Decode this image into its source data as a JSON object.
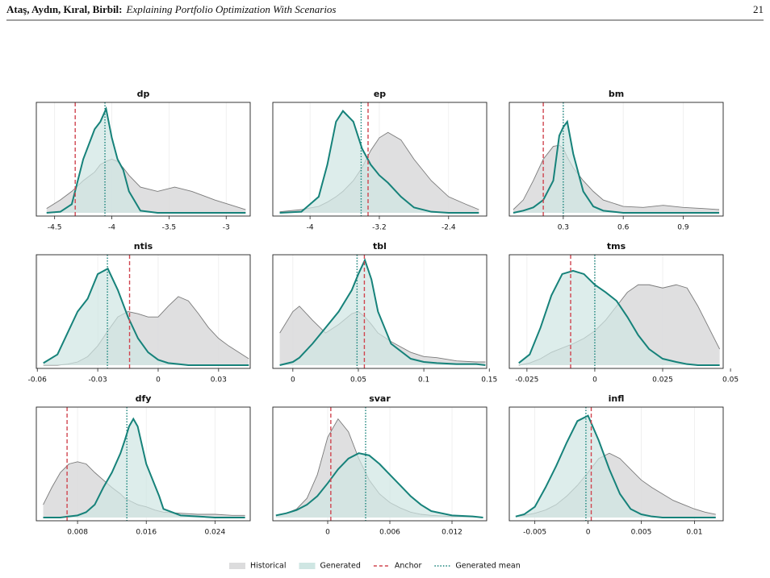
{
  "header": {
    "authors": "Ataş, Aydın, Kıral, Birbil:",
    "title": "Explaining Portfolio Optimization With Scenarios",
    "page": "21"
  },
  "legend": {
    "items": [
      {
        "label": "Historical",
        "color": "#dcdcdd",
        "edge_color": "#7a7a7a"
      },
      {
        "label": "Generated",
        "color": "#cfe6e3",
        "edge_color": "#16827a"
      },
      {
        "label": "Anchor",
        "color": "#d0454f"
      },
      {
        "label": "Generated mean",
        "color": "#16827a"
      }
    ]
  },
  "chart_data": [
    {
      "type": "density",
      "title": "dp",
      "xlim": [
        -4.66,
        -2.79
      ],
      "ylim": [
        0,
        1
      ],
      "xticks": [
        -4.5,
        -4,
        -3.5,
        -3
      ],
      "grid": true,
      "x": [
        -4.57,
        -4.45,
        -4.35,
        -4.25,
        -4.15,
        -4.1,
        -4.05,
        -4.0,
        -3.95,
        -3.9,
        -3.85,
        -3.75,
        -3.6,
        -3.45,
        -3.3,
        -3.1,
        -2.95,
        -2.83
      ],
      "historical": [
        0.04,
        0.12,
        0.2,
        0.3,
        0.38,
        0.45,
        0.48,
        0.5,
        0.48,
        0.42,
        0.35,
        0.24,
        0.2,
        0.24,
        0.2,
        0.12,
        0.07,
        0.03
      ],
      "generated": [
        0,
        0.01,
        0.08,
        0.5,
        0.78,
        0.85,
        0.97,
        0.7,
        0.5,
        0.4,
        0.2,
        0.02,
        0,
        0,
        0,
        0,
        0,
        0
      ],
      "anchor": -4.32,
      "generated_mean": -4.06
    },
    {
      "type": "density",
      "title": "ep",
      "xlim": [
        -4.43,
        -1.96
      ],
      "ylim": [
        0,
        1
      ],
      "xticks": [
        -4,
        -3.2,
        -2.4
      ],
      "grid": true,
      "x": [
        -4.35,
        -4.1,
        -3.9,
        -3.8,
        -3.7,
        -3.62,
        -3.5,
        -3.4,
        -3.3,
        -3.2,
        -3.1,
        -2.95,
        -2.8,
        -2.6,
        -2.4,
        -2.2,
        -2.05
      ],
      "historical": [
        0.01,
        0.03,
        0.06,
        0.1,
        0.15,
        0.2,
        0.3,
        0.42,
        0.58,
        0.7,
        0.75,
        0.68,
        0.5,
        0.3,
        0.15,
        0.08,
        0.03
      ],
      "generated": [
        0,
        0.01,
        0.15,
        0.45,
        0.85,
        0.95,
        0.85,
        0.6,
        0.45,
        0.35,
        0.28,
        0.15,
        0.05,
        0.01,
        0,
        0,
        0
      ],
      "anchor": -3.33,
      "generated_mean": -3.41
    },
    {
      "type": "density",
      "title": "bm",
      "xlim": [
        0.03,
        1.1
      ],
      "ylim": [
        0,
        1
      ],
      "xticks": [
        0.3,
        0.6,
        0.9
      ],
      "grid": true,
      "x": [
        0.05,
        0.1,
        0.15,
        0.2,
        0.25,
        0.28,
        0.3,
        0.32,
        0.35,
        0.4,
        0.45,
        0.5,
        0.6,
        0.7,
        0.8,
        0.9,
        1.0,
        1.08
      ],
      "historical": [
        0.03,
        0.12,
        0.3,
        0.5,
        0.62,
        0.63,
        0.6,
        0.52,
        0.42,
        0.3,
        0.2,
        0.12,
        0.06,
        0.05,
        0.07,
        0.05,
        0.04,
        0.03
      ],
      "generated": [
        0,
        0.02,
        0.05,
        0.12,
        0.3,
        0.72,
        0.8,
        0.85,
        0.55,
        0.2,
        0.06,
        0.02,
        0,
        0,
        0,
        0,
        0,
        0
      ],
      "anchor": 0.2,
      "generated_mean": 0.3
    },
    {
      "type": "density",
      "title": "ntis",
      "xlim": [
        -0.0605,
        0.0457
      ],
      "ylim": [
        0,
        1
      ],
      "xticks": [
        -0.06,
        -0.03,
        0,
        0.03
      ],
      "grid": true,
      "x": [
        -0.057,
        -0.05,
        -0.045,
        -0.04,
        -0.035,
        -0.03,
        -0.025,
        -0.02,
        -0.015,
        -0.01,
        -0.005,
        0,
        0.005,
        0.01,
        0.015,
        0.02,
        0.025,
        0.03,
        0.035,
        0.04,
        0.045
      ],
      "historical": [
        0,
        0,
        0.01,
        0.03,
        0.08,
        0.18,
        0.32,
        0.45,
        0.5,
        0.48,
        0.45,
        0.45,
        0.55,
        0.64,
        0.6,
        0.48,
        0.35,
        0.25,
        0.18,
        0.12,
        0.06
      ],
      "generated": [
        0.02,
        0.1,
        0.3,
        0.5,
        0.62,
        0.85,
        0.9,
        0.7,
        0.45,
        0.25,
        0.12,
        0.05,
        0.02,
        0.01,
        0,
        0,
        0,
        0,
        0,
        0,
        0
      ],
      "anchor": -0.0142,
      "generated_mean": -0.0252
    },
    {
      "type": "density",
      "title": "tbl",
      "xlim": [
        -0.0153,
        0.148
      ],
      "ylim": [
        0,
        1
      ],
      "xticks": [
        0,
        0.05,
        0.1,
        0.15
      ],
      "grid": true,
      "x": [
        -0.01,
        0,
        0.005,
        0.015,
        0.025,
        0.035,
        0.045,
        0.05,
        0.055,
        0.06,
        0.065,
        0.075,
        0.09,
        0.1,
        0.11,
        0.125,
        0.14,
        0.147
      ],
      "historical": [
        0.3,
        0.5,
        0.55,
        0.42,
        0.3,
        0.38,
        0.48,
        0.5,
        0.45,
        0.38,
        0.3,
        0.22,
        0.12,
        0.08,
        0.07,
        0.04,
        0.03,
        0.03
      ],
      "generated": [
        0,
        0.03,
        0.07,
        0.2,
        0.35,
        0.5,
        0.7,
        0.85,
        0.98,
        0.8,
        0.5,
        0.2,
        0.06,
        0.03,
        0.02,
        0.01,
        0.01,
        0
      ],
      "anchor": 0.0546,
      "generated_mean": 0.049
    },
    {
      "type": "density",
      "title": "tms",
      "xlim": [
        -0.0315,
        0.0473
      ],
      "ylim": [
        0,
        1
      ],
      "xticks": [
        -0.025,
        0,
        0.025,
        0.05
      ],
      "grid": true,
      "x": [
        -0.028,
        -0.024,
        -0.02,
        -0.016,
        -0.012,
        -0.008,
        -0.004,
        0,
        0.004,
        0.008,
        0.012,
        0.016,
        0.02,
        0.025,
        0.03,
        0.034,
        0.038,
        0.042,
        0.046
      ],
      "historical": [
        0,
        0.02,
        0.06,
        0.12,
        0.16,
        0.2,
        0.25,
        0.32,
        0.42,
        0.55,
        0.68,
        0.75,
        0.75,
        0.72,
        0.75,
        0.72,
        0.55,
        0.35,
        0.15
      ],
      "generated": [
        0.02,
        0.1,
        0.35,
        0.65,
        0.85,
        0.88,
        0.85,
        0.75,
        0.68,
        0.6,
        0.45,
        0.28,
        0.15,
        0.06,
        0.03,
        0.01,
        0,
        0,
        0
      ],
      "anchor": -0.0089,
      "generated_mean": 0
    },
    {
      "type": "density",
      "title": "dfy",
      "xlim": [
        0.0032,
        0.0281
      ],
      "ylim": [
        0,
        1
      ],
      "xticks": [
        0.008,
        0.016,
        0.024
      ],
      "grid": true,
      "x": [
        0.004,
        0.005,
        0.006,
        0.007,
        0.008,
        0.009,
        0.01,
        0.011,
        0.012,
        0.013,
        0.0135,
        0.014,
        0.0145,
        0.015,
        0.016,
        0.017,
        0.0175,
        0.018,
        0.02,
        0.022,
        0.024,
        0.026,
        0.0275
      ],
      "historical": [
        0.12,
        0.28,
        0.42,
        0.5,
        0.52,
        0.5,
        0.42,
        0.35,
        0.28,
        0.22,
        0.18,
        0.16,
        0.14,
        0.12,
        0.1,
        0.07,
        0.06,
        0.05,
        0.04,
        0.03,
        0.03,
        0.02,
        0.02
      ],
      "generated": [
        0,
        0,
        0,
        0.01,
        0.02,
        0.05,
        0.12,
        0.28,
        0.42,
        0.6,
        0.72,
        0.85,
        0.92,
        0.85,
        0.5,
        0.3,
        0.2,
        0.08,
        0.02,
        0.01,
        0,
        0,
        0
      ],
      "anchor": 0.00678,
      "generated_mean": 0.01374
    },
    {
      "type": "density",
      "title": "svar",
      "xlim": [
        -0.0053,
        0.01535
      ],
      "ylim": [
        0,
        1
      ],
      "xticks": [
        0,
        0.006,
        0.012
      ],
      "grid": true,
      "x": [
        -0.005,
        -0.004,
        -0.003,
        -0.002,
        -0.001,
        0,
        0.001,
        0.002,
        0.003,
        0.004,
        0.005,
        0.006,
        0.007,
        0.008,
        0.009,
        0.01,
        0.012,
        0.014,
        0.015
      ],
      "historical": [
        0.02,
        0.04,
        0.08,
        0.18,
        0.4,
        0.75,
        0.92,
        0.8,
        0.55,
        0.35,
        0.22,
        0.14,
        0.09,
        0.05,
        0.03,
        0.02,
        0.01,
        0.01,
        0
      ],
      "generated": [
        0.02,
        0.04,
        0.07,
        0.12,
        0.2,
        0.32,
        0.45,
        0.55,
        0.6,
        0.58,
        0.5,
        0.4,
        0.3,
        0.2,
        0.12,
        0.06,
        0.02,
        0.01,
        0
      ],
      "anchor": 0.0003,
      "generated_mean": 0.00366
    },
    {
      "type": "density",
      "title": "infl",
      "xlim": [
        -0.0074,
        0.0127
      ],
      "ylim": [
        0,
        1
      ],
      "xticks": [
        -0.005,
        0,
        0.005,
        0.01
      ],
      "grid": true,
      "x": [
        -0.0068,
        -0.006,
        -0.005,
        -0.004,
        -0.003,
        -0.002,
        -0.001,
        0,
        0.001,
        0.002,
        0.003,
        0.004,
        0.005,
        0.006,
        0.007,
        0.008,
        0.009,
        0.01,
        0.011,
        0.012
      ],
      "historical": [
        0.01,
        0.02,
        0.04,
        0.07,
        0.12,
        0.2,
        0.3,
        0.42,
        0.55,
        0.6,
        0.55,
        0.45,
        0.35,
        0.28,
        0.22,
        0.16,
        0.12,
        0.08,
        0.05,
        0.03
      ],
      "generated": [
        0.01,
        0.03,
        0.1,
        0.28,
        0.48,
        0.7,
        0.9,
        0.95,
        0.72,
        0.45,
        0.22,
        0.08,
        0.03,
        0.01,
        0,
        0,
        0,
        0,
        0,
        0
      ],
      "anchor": 0.0003,
      "generated_mean": -0.0002
    }
  ]
}
